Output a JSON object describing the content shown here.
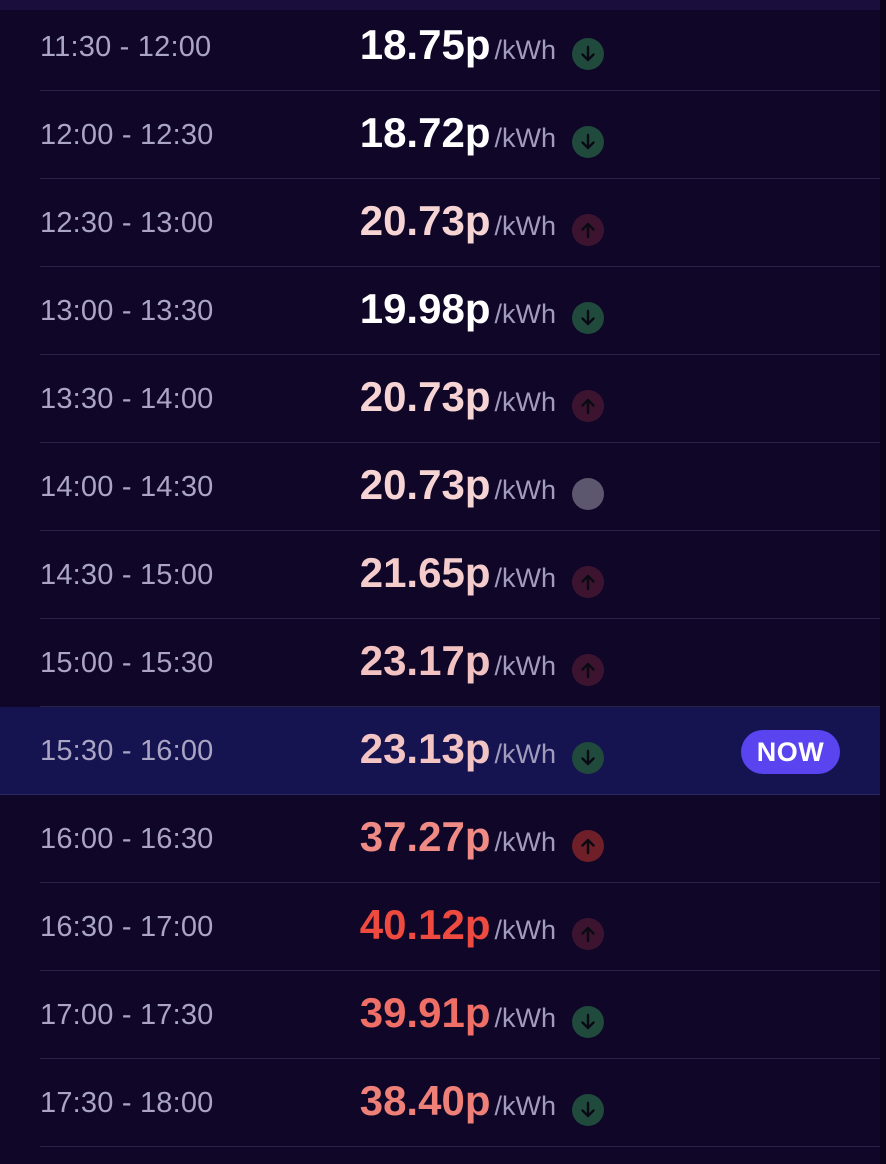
{
  "colors": {
    "background": "#100628",
    "current_row_bg": "#161450",
    "now_badge": "#5944f0",
    "down": "#1f4a3c",
    "up": "#3d1430",
    "up_strong": "#6e1f27",
    "neutral": "#5c566e"
  },
  "unit_label": "/kWh",
  "now_label": "NOW",
  "rates": [
    {
      "time": "11:30 - 12:00",
      "price": "18.75p",
      "price_color": "#ffffff",
      "trend": "down",
      "trend_icon": "arrow-down-icon",
      "current": false
    },
    {
      "time": "12:00 - 12:30",
      "price": "18.72p",
      "price_color": "#ffffff",
      "trend": "down",
      "trend_icon": "arrow-down-icon",
      "current": false
    },
    {
      "time": "12:30 - 13:00",
      "price": "20.73p",
      "price_color": "#f6d4d4",
      "trend": "up",
      "trend_icon": "arrow-up-icon",
      "current": false
    },
    {
      "time": "13:00 - 13:30",
      "price": "19.98p",
      "price_color": "#ffffff",
      "trend": "down",
      "trend_icon": "arrow-down-icon",
      "current": false
    },
    {
      "time": "13:30 - 14:00",
      "price": "20.73p",
      "price_color": "#f6d4d4",
      "trend": "up",
      "trend_icon": "arrow-up-icon",
      "current": false
    },
    {
      "time": "14:00 - 14:30",
      "price": "20.73p",
      "price_color": "#f6d4d4",
      "trend": "neutral",
      "trend_icon": "neutral-dot-icon",
      "current": false
    },
    {
      "time": "14:30 - 15:00",
      "price": "21.65p",
      "price_color": "#f5cccc",
      "trend": "up",
      "trend_icon": "arrow-up-icon",
      "current": false
    },
    {
      "time": "15:00 - 15:30",
      "price": "23.17p",
      "price_color": "#f2c2c2",
      "trend": "up",
      "trend_icon": "arrow-up-icon",
      "current": false
    },
    {
      "time": "15:30 - 16:00",
      "price": "23.13p",
      "price_color": "#f2c4c4",
      "trend": "down",
      "trend_icon": "arrow-down-icon",
      "current": true
    },
    {
      "time": "16:00 - 16:30",
      "price": "37.27p",
      "price_color": "#ef8a84",
      "trend": "up_strong",
      "trend_icon": "arrow-up-icon",
      "current": false
    },
    {
      "time": "16:30 - 17:00",
      "price": "40.12p",
      "price_color": "#ee4a40",
      "trend": "up",
      "trend_icon": "arrow-up-icon",
      "current": false
    },
    {
      "time": "17:00 - 17:30",
      "price": "39.91p",
      "price_color": "#ef6e66",
      "trend": "down",
      "trend_icon": "arrow-down-icon",
      "current": false
    },
    {
      "time": "17:30 - 18:00",
      "price": "38.40p",
      "price_color": "#ef8078",
      "trend": "down",
      "trend_icon": "arrow-down-icon",
      "current": false
    }
  ]
}
